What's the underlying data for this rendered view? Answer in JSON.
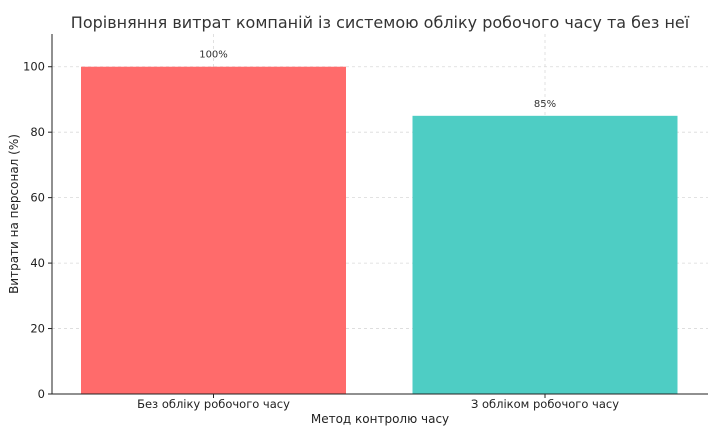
{
  "chart_data": {
    "type": "bar",
    "title": "Порівняння витрат компаній із системою обліку робочого часу та без неї",
    "xlabel": "Метод контролю часу",
    "ylabel": "Витрати на персонал (%)",
    "categories": [
      "Без обліку робочого часу",
      "З обліком робочого часу"
    ],
    "values": [
      100,
      85
    ],
    "data_labels": [
      "100%",
      "85%"
    ],
    "colors": [
      "#ff6b6b",
      "#4ecdc4"
    ],
    "ylim": [
      0,
      110
    ],
    "yticks": [
      0,
      20,
      40,
      60,
      80,
      100
    ],
    "grid": true
  }
}
